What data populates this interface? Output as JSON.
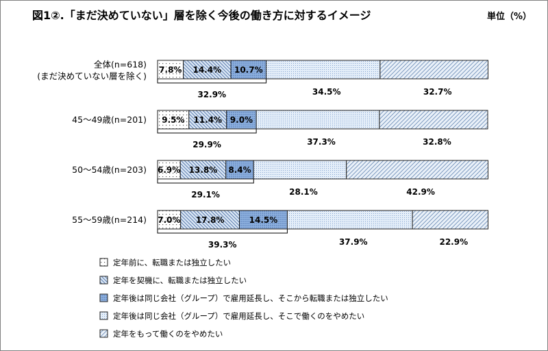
{
  "title": "図1②.「まだ決めていない」層を除く今後の働き方に対するイメージ",
  "unit_label": "単位（%）",
  "chart_data": {
    "type": "bar",
    "orientation": "horizontal",
    "stacked": true,
    "xlim": [
      0,
      100
    ],
    "grid": false,
    "legend_position": "bottom-left",
    "categories": [
      [
        "全体(n=618)",
        "(まだ決めていない層を除く)"
      ],
      [
        "45～49歳(n=201)"
      ],
      [
        "50～54歳(n=203)"
      ],
      [
        "55～59歳(n=214)"
      ]
    ],
    "series": [
      {
        "name": "定年前に、転職または独立したい",
        "pattern": "sparse-dots",
        "color": "#ffffff",
        "values": [
          7.8,
          9.5,
          6.9,
          7.0
        ]
      },
      {
        "name": "定年を契機に、転職または独立したい",
        "pattern": "backslash",
        "color": "#dbe7f5",
        "values": [
          14.4,
          11.4,
          13.8,
          17.8
        ]
      },
      {
        "name": "定年後は同じ会社（グループ）で雇用延長し、そこから転職または独立したい",
        "pattern": "dense-dots",
        "color": "#8fb2e0",
        "values": [
          10.7,
          9.0,
          8.4,
          14.5
        ]
      },
      {
        "name": "定年後は同じ会社（グループ）で雇用延長し、そこで働くのをやめたい",
        "pattern": "fine-dots",
        "color": "#e4eef9",
        "values": [
          34.5,
          37.3,
          28.1,
          37.9
        ]
      },
      {
        "name": "定年をもって働くのをやめたい",
        "pattern": "slash",
        "color": "#eaf1f9",
        "values": [
          32.7,
          32.8,
          42.9,
          22.9
        ]
      }
    ],
    "segment_labels": [
      [
        "7.8%",
        "14.4%",
        "10.7%"
      ],
      [
        "9.5%",
        "11.4%",
        "9.0%"
      ],
      [
        "6.9%",
        "13.8%",
        "8.4%"
      ],
      [
        "7.0%",
        "17.8%",
        "14.5%"
      ]
    ],
    "below_labels": [
      [
        "34.5%",
        "32.7%"
      ],
      [
        "37.3%",
        "32.8%"
      ],
      [
        "28.1%",
        "42.9%"
      ],
      [
        "37.9%",
        "22.9%"
      ]
    ],
    "bracket_totals": [
      "32.9%",
      "29.9%",
      "29.1%",
      "39.3%"
    ]
  }
}
